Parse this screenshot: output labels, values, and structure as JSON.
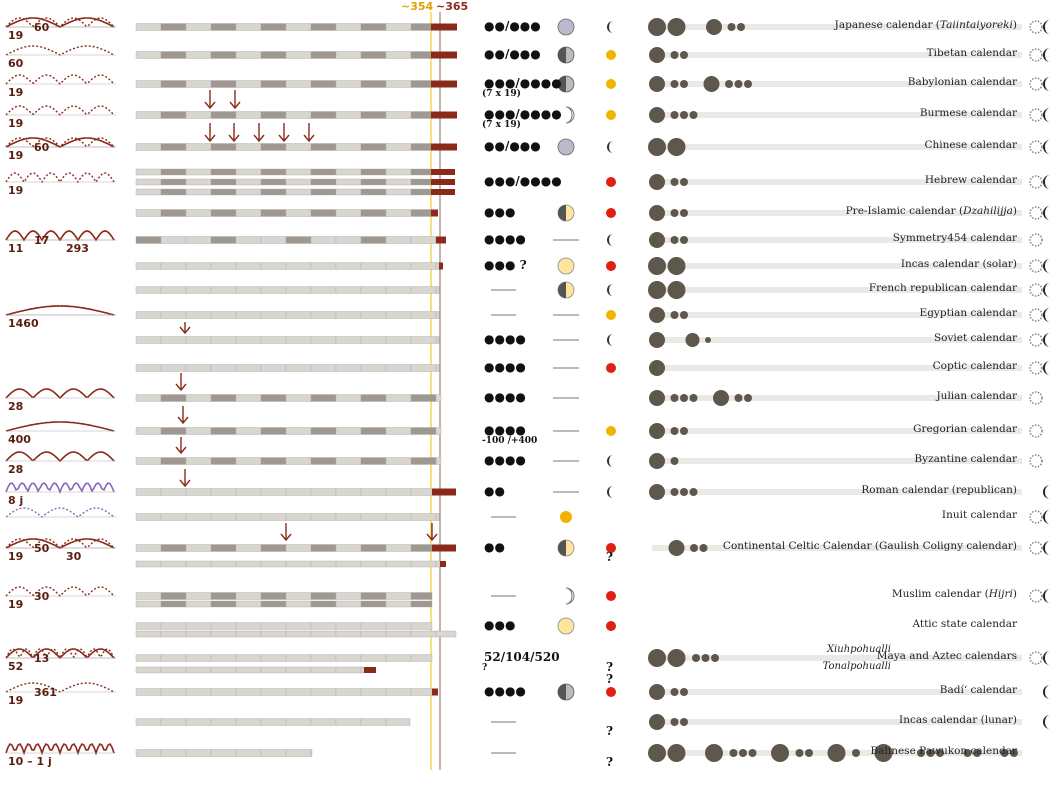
{
  "header": {
    "lunar_mark": "~354",
    "solar_mark": "~365"
  },
  "colors": {
    "dark_red": "#8b2a1a",
    "bar_light": "#d9d6d0",
    "bar_dark": "#9e9890",
    "gold": "#f0b400",
    "red": "#e02010",
    "moon_grey": "#bdb8cc",
    "bubble": "#5e574c",
    "track": "#ebe9e6"
  },
  "rows": [
    {
      "label": "Japanese calendar (",
      "label_italic": "Taiintaiyoreki",
      "label_end": ")",
      "cycle": "19",
      "cycle2": "60",
      "count_text": "●●/●●●",
      "note": ""
    },
    {
      "label": "Tibetan calendar",
      "cycle": "60",
      "count_text": "●●/●●●",
      "note": ""
    },
    {
      "label": "Babylonian calendar",
      "cycle": "19",
      "count_text": "●●●/●●●●",
      "note": "(7 x 19)"
    },
    {
      "label": "Burmese calendar",
      "cycle": "19",
      "count_text": "●●●/●●●●",
      "note": "(7 x 19)"
    },
    {
      "label": "Chinese calendar",
      "cycle": "19",
      "cycle2": "60",
      "count_text": "●●/●●●",
      "note": ""
    },
    {
      "label": "Hebrew calendar",
      "cycle": "19",
      "count_text": "●●●/●●●●",
      "note": ""
    },
    {
      "label": "Pre-Islamic calendar (",
      "label_italic": "Dzahilijja",
      "label_end": ")",
      "cycle": "",
      "count_text": "●●●",
      "note": ""
    },
    {
      "label": "Symmetry454 calendar",
      "cycle": "11",
      "cycle2": "17",
      "cycle3": "293",
      "count_text": "●●●●",
      "note": ""
    },
    {
      "label": "Incas calendar (solar)",
      "cycle": "",
      "count_text": "●●● ?",
      "note": ""
    },
    {
      "label": "French republican calendar",
      "cycle": "",
      "count_text": "",
      "note": ""
    },
    {
      "label": "Egyptian calendar",
      "cycle": "1460",
      "count_text": "",
      "note": ""
    },
    {
      "label": "Soviet calendar",
      "cycle": "",
      "count_text": "●●●●",
      "note": ""
    },
    {
      "label": "Coptic calendar",
      "cycle": "",
      "count_text": "●●●●",
      "note": ""
    },
    {
      "label": "Julian calendar",
      "cycle": "28",
      "count_text": "●●●●",
      "note": ""
    },
    {
      "label": "Gregorian calendar",
      "cycle": "400",
      "count_text": "●●●●",
      "note": "-100 /+400"
    },
    {
      "label": "Byzantine calendar",
      "cycle": "28",
      "count_text": "●●●●",
      "note": ""
    },
    {
      "label": "Roman calendar (republican)",
      "cycle": "8 j",
      "count_text": "●●",
      "note": ""
    },
    {
      "label": "Inuit calendar",
      "cycle": "",
      "count_text": "",
      "note": ""
    },
    {
      "label": "Continental Celtic Calendar (Gaulish Coligny calendar)",
      "cycle": "19",
      "cycle2": "50",
      "cycle3": "30",
      "count_text": "●●",
      "note": ""
    },
    {
      "label": "Muslim calendar (",
      "label_italic": "Hijri",
      "label_end": ")",
      "cycle": "19",
      "cycle2": "30",
      "count_text": "",
      "note": ""
    },
    {
      "label": "Attic state calendar",
      "cycle": "",
      "count_text": "●●●",
      "note": ""
    },
    {
      "label": "Maya and Aztec calendars",
      "cycle": "52",
      "cycle2": "13",
      "count_text": "52/104/520",
      "note": "?",
      "sub1": "Xiuhpohualli",
      "sub2": "Tonalpohualli"
    },
    {
      "label": "Badí‘ calendar",
      "cycle": "19",
      "cycle2": "361",
      "count_text": "●●●●",
      "note": ""
    },
    {
      "label": "Incas calendar (lunar)",
      "cycle": "",
      "count_text": "",
      "note": ""
    },
    {
      "label": "Balinese Pawukon calendar",
      "cycle": "10 – 1 j",
      "count_text": "",
      "note": ""
    }
  ],
  "question_mark": "?"
}
